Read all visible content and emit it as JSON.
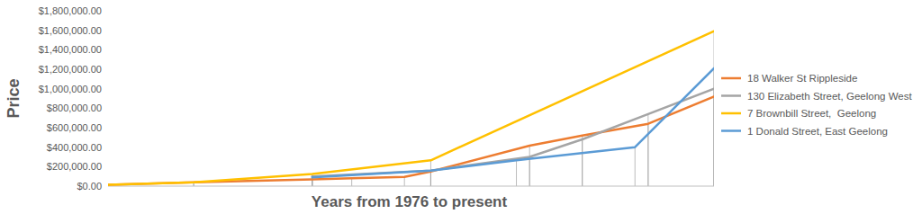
{
  "chart_data": {
    "type": "line",
    "x_label": "Years from 1976 to present",
    "y_label": "Price",
    "xlim": [
      0,
      46
    ],
    "ylim": [
      0,
      1800000
    ],
    "yticks": [
      {
        "value": 0,
        "label": "$0.00"
      },
      {
        "value": 200000,
        "label": "$200,000.00"
      },
      {
        "value": 400000,
        "label": "$400,000.00"
      },
      {
        "value": 600000,
        "label": "$600,000.00"
      },
      {
        "value": 800000,
        "label": "$800,000.00"
      },
      {
        "value": 1000000,
        "label": "$1,000,000.00"
      },
      {
        "value": 1200000,
        "label": "$1,200,000.00"
      },
      {
        "value": 1400000,
        "label": "$1,400,000.00"
      },
      {
        "value": 1600000,
        "label": "$1,600,000.00"
      },
      {
        "value": 1800000,
        "label": "$1,800,000.00"
      }
    ],
    "grid": false,
    "legend": "right",
    "tick_labels": "y",
    "series": [
      {
        "name": "18 Walker St Rippleside",
        "color": "#ED7D31",
        "x": [
          0,
          6.5,
          15.5,
          18.5,
          22.5,
          24.5,
          32,
          36,
          41,
          46
        ],
        "values": [
          15000,
          40000,
          70000,
          80000,
          95000,
          150000,
          415000,
          520000,
          640000,
          920000
        ]
      },
      {
        "name": "130 Elizabeth Street, Geelong West",
        "color": "#A5A5A5",
        "x": [
          15.5,
          24.5,
          32,
          36,
          41,
          46
        ],
        "values": [
          100000,
          160000,
          300000,
          480000,
          740000,
          1000000
        ]
      },
      {
        "name": "7 Brownbill Street,  Geelong",
        "color": "#FFC000",
        "x": [
          0,
          6.5,
          15.5,
          24.5,
          46
        ],
        "values": [
          15000,
          40000,
          125000,
          265000,
          1590000
        ]
      },
      {
        "name": "1 Donald Street, East Geelong",
        "color": "#5B9BD5",
        "x": [
          15.5,
          24.5,
          31,
          40,
          46
        ],
        "values": [
          90000,
          160000,
          265000,
          400000,
          1210000
        ]
      }
    ]
  }
}
